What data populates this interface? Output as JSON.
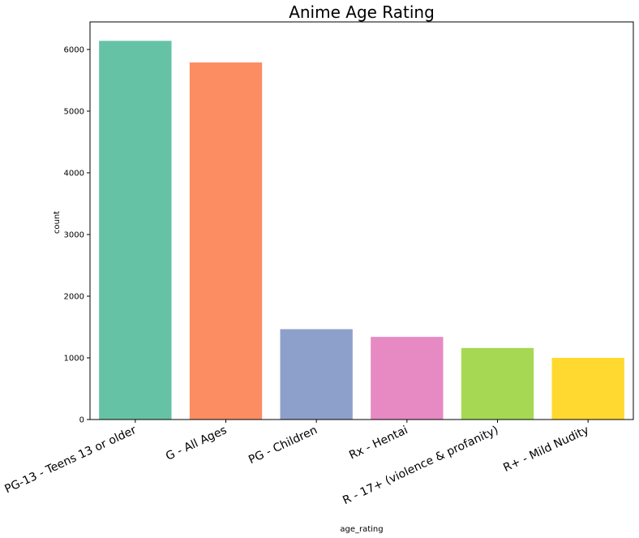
{
  "chart_data": {
    "type": "bar",
    "title": "Anime Age Rating",
    "xlabel": "age_rating",
    "ylabel": "count",
    "categories": [
      "PG-13 - Teens 13 or older",
      "G - All Ages",
      "PG - Children",
      "Rx - Hentai",
      "R - 17+ (violence & profanity)",
      "R+ - Mild Nudity"
    ],
    "values": [
      6140,
      5790,
      1465,
      1340,
      1160,
      1000
    ],
    "colors": [
      "#66c2a5",
      "#fc8d62",
      "#8da0cb",
      "#e78ac3",
      "#a6d854",
      "#ffd92f"
    ],
    "yticks": [
      0,
      1000,
      2000,
      3000,
      4000,
      5000,
      6000
    ],
    "ylim": [
      0,
      6447
    ],
    "grid": false,
    "legend": "none"
  }
}
